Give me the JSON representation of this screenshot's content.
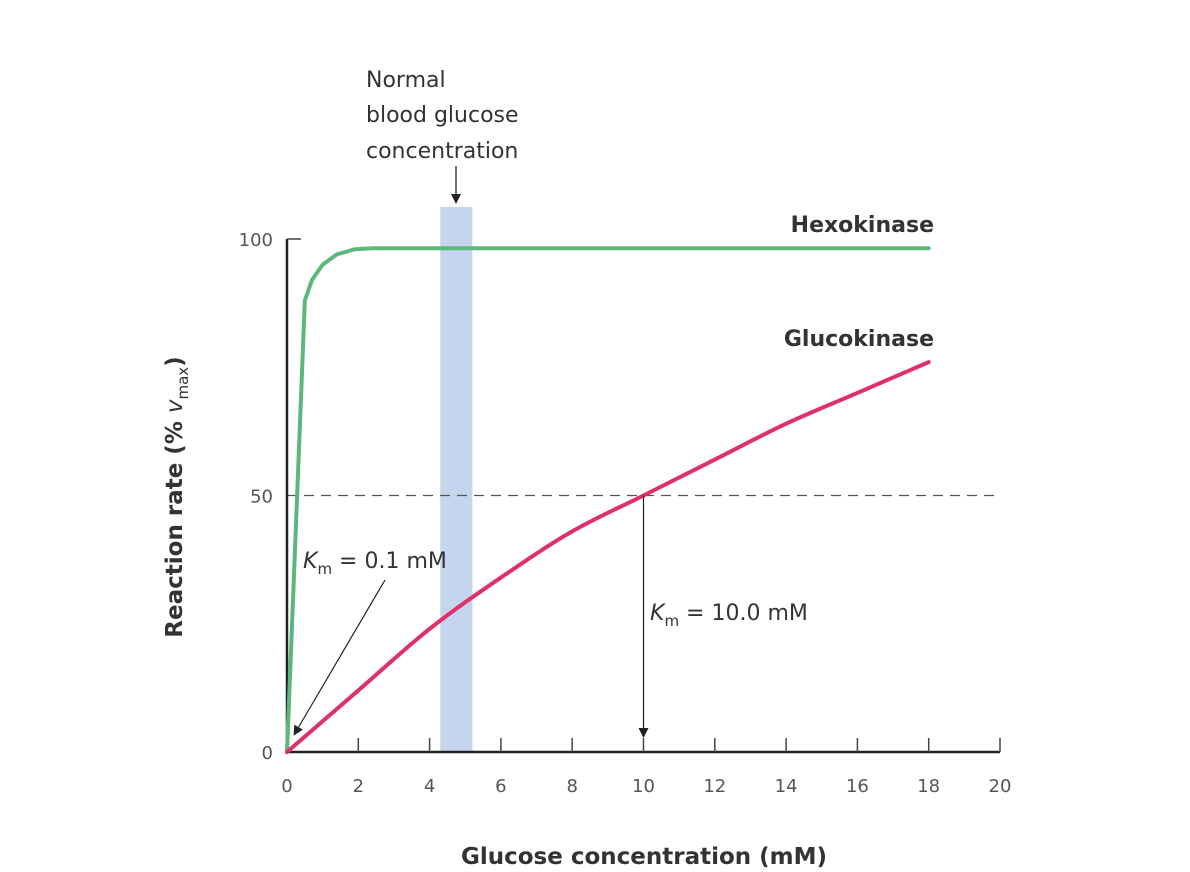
{
  "chart_data": {
    "type": "line",
    "title": "",
    "xlabel": "Glucose concentration (mM)",
    "ylabel_main": "Reaction rate (% ",
    "ylabel_var": "v",
    "ylabel_sub": "max",
    "ylabel_end": ")",
    "xlim": [
      0,
      20
    ],
    "ylim": [
      0,
      100
    ],
    "xticks": [
      0,
      2,
      4,
      6,
      8,
      10,
      12,
      14,
      16,
      18,
      20
    ],
    "yticks": [
      0,
      50,
      100
    ],
    "grid": false,
    "series": [
      {
        "name": "Hexokinase",
        "color": "#5cb87a",
        "x": [
          0,
          0.5,
          0.7,
          1.0,
          1.4,
          1.9,
          2.4,
          5,
          10,
          18
        ],
        "y": [
          0,
          88,
          92,
          95,
          97,
          98,
          98.2,
          98.2,
          98.2,
          98.2
        ]
      },
      {
        "name": "Glucokinase",
        "color": "#e0306a",
        "x": [
          0,
          2,
          4,
          6,
          8,
          10,
          12,
          14,
          16,
          18
        ],
        "y": [
          0,
          12,
          24,
          34,
          43,
          50,
          57,
          64,
          70,
          76
        ]
      }
    ],
    "reference_line": {
      "y": 50,
      "style": "dashed",
      "color": "#555555"
    },
    "band": {
      "x_from": 4.3,
      "x_to": 5.2,
      "color": "#c5d5ee",
      "label_lines": [
        "Normal",
        "blood glucose",
        "concentration"
      ]
    },
    "annotations": [
      {
        "var": "K",
        "sub": "m",
        "text": " = 0.1 mM",
        "points_to_x": 0.1
      },
      {
        "var": "K",
        "sub": "m",
        "text": " = 10.0 mM",
        "points_to_x": 10
      }
    ]
  }
}
